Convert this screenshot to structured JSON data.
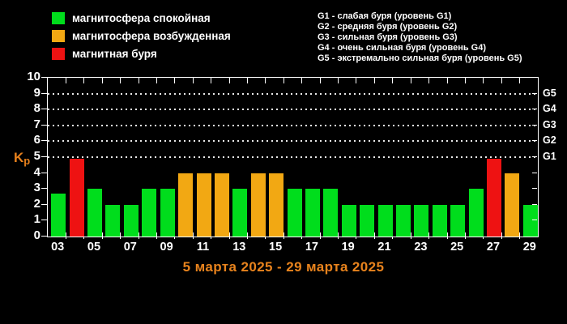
{
  "legend": {
    "items": [
      {
        "label": "магнитосфера спокойная",
        "state": "quiet",
        "color": "#00dd1c",
        "icon": "green-square-icon"
      },
      {
        "label": "магнитосфера возбужденная",
        "state": "excited",
        "color": "#f2a813",
        "icon": "orange-square-icon"
      },
      {
        "label": "магнитная буря",
        "state": "storm",
        "color": "#ee1212",
        "icon": "red-square-icon"
      }
    ]
  },
  "storm_scale": {
    "lines": [
      "G1 - слабая буря (уровень G1)",
      "G2 - средняя буря (уровень G2)",
      "G3 - сильная буря (уровень G3)",
      "G4 - очень сильная буря (уровень G4)",
      "G5 - экстремально сильная буря (уровень G5)"
    ]
  },
  "chart_data": {
    "type": "bar",
    "title": "5 марта 2025 - 29 марта 2025",
    "ylabel": "Kp",
    "ylim": [
      0,
      10
    ],
    "grid": "dotted horizontal lines at G-levels only",
    "legend_position": "top-left",
    "y_ticks": [
      0,
      1,
      2,
      3,
      4,
      5,
      6,
      7,
      8,
      9,
      10
    ],
    "gridlines_at": [
      5,
      6,
      7,
      8,
      9
    ],
    "right_axis_labels": [
      {
        "label": "G1",
        "value": 5
      },
      {
        "label": "G2",
        "value": 6
      },
      {
        "label": "G3",
        "value": 7
      },
      {
        "label": "G4",
        "value": 8
      },
      {
        "label": "G5",
        "value": 9
      }
    ],
    "x_tick_labels": [
      "03",
      "05",
      "07",
      "09",
      "11",
      "13",
      "15",
      "17",
      "19",
      "21",
      "23",
      "25",
      "27",
      "29"
    ],
    "bars": [
      {
        "day": "03",
        "kp": 2.7,
        "state": "quiet"
      },
      {
        "day": "04",
        "kp": 4.9,
        "state": "storm"
      },
      {
        "day": "05",
        "kp": 3.0,
        "state": "quiet"
      },
      {
        "day": "06",
        "kp": 2.0,
        "state": "quiet"
      },
      {
        "day": "07",
        "kp": 2.0,
        "state": "quiet"
      },
      {
        "day": "08",
        "kp": 3.0,
        "state": "quiet"
      },
      {
        "day": "09",
        "kp": 3.0,
        "state": "quiet"
      },
      {
        "day": "10",
        "kp": 4.0,
        "state": "excited"
      },
      {
        "day": "11",
        "kp": 4.0,
        "state": "excited"
      },
      {
        "day": "12",
        "kp": 4.0,
        "state": "excited"
      },
      {
        "day": "13",
        "kp": 3.0,
        "state": "quiet"
      },
      {
        "day": "14",
        "kp": 4.0,
        "state": "excited"
      },
      {
        "day": "15",
        "kp": 4.0,
        "state": "excited"
      },
      {
        "day": "16",
        "kp": 3.0,
        "state": "quiet"
      },
      {
        "day": "17",
        "kp": 3.0,
        "state": "quiet"
      },
      {
        "day": "18",
        "kp": 3.0,
        "state": "quiet"
      },
      {
        "day": "19",
        "kp": 2.0,
        "state": "quiet"
      },
      {
        "day": "20",
        "kp": 2.0,
        "state": "quiet"
      },
      {
        "day": "21",
        "kp": 2.0,
        "state": "quiet"
      },
      {
        "day": "22",
        "kp": 2.0,
        "state": "quiet"
      },
      {
        "day": "23",
        "kp": 2.0,
        "state": "quiet"
      },
      {
        "day": "24",
        "kp": 2.0,
        "state": "quiet"
      },
      {
        "day": "25",
        "kp": 2.0,
        "state": "quiet"
      },
      {
        "day": "26",
        "kp": 3.0,
        "state": "quiet"
      },
      {
        "day": "27",
        "kp": 4.9,
        "state": "storm"
      },
      {
        "day": "28",
        "kp": 4.0,
        "state": "excited"
      },
      {
        "day": "29",
        "kp": 2.0,
        "state": "quiet"
      }
    ],
    "state_colors": {
      "quiet": "#00dd1c",
      "excited": "#f2a813",
      "storm": "#ee1212"
    }
  },
  "colors": {
    "background": "#000000",
    "text": "#ffffff",
    "accent_orange": "#e8831d"
  }
}
